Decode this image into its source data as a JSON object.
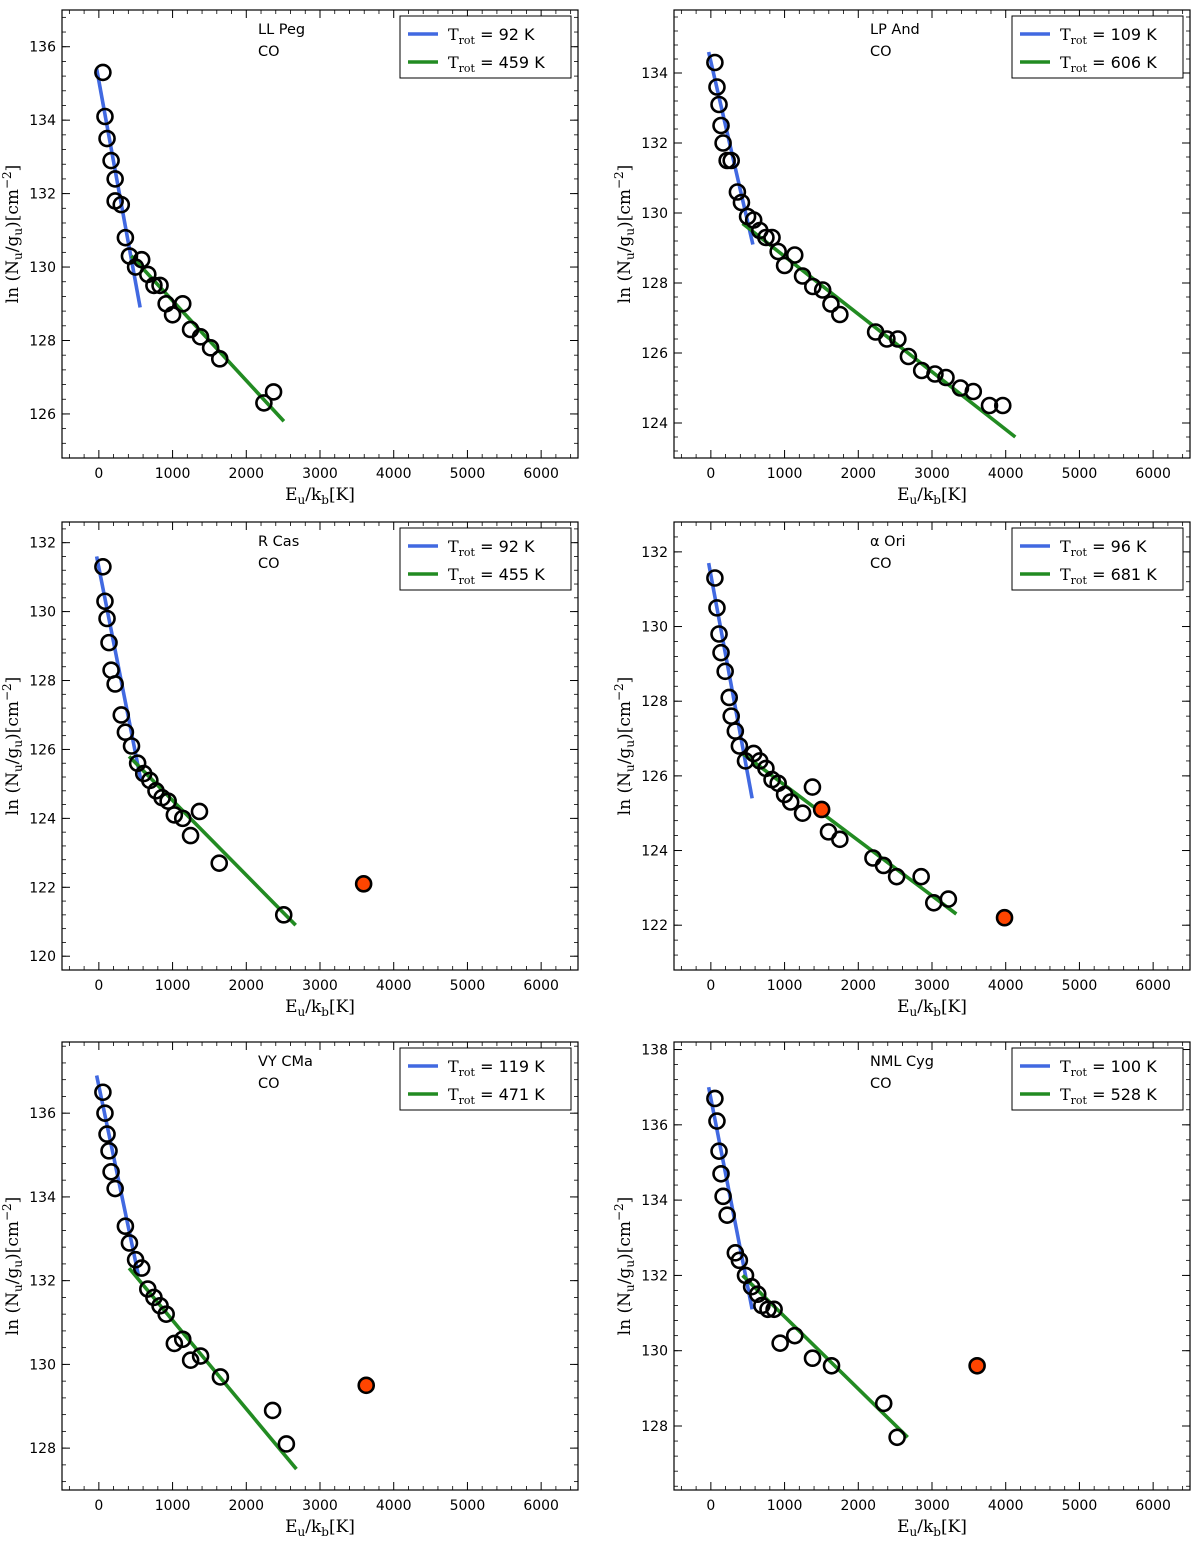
{
  "chart_data": [
    {
      "type": "scatter",
      "title": "LL Peg",
      "subtitle": "CO",
      "xlabel": "E_u/k_b[K]",
      "ylabel": "ln(N_u/g_u)[cm^-2]",
      "xlim": [
        -500,
        6500
      ],
      "ylim": [
        124.8,
        137.0
      ],
      "xticks": [
        0,
        1000,
        2000,
        3000,
        4000,
        5000,
        6000
      ],
      "yticks": [
        126,
        128,
        130,
        132,
        134,
        136
      ],
      "legend_position": "top-right",
      "points": [
        [
          55,
          135.3
        ],
        [
          83,
          134.1
        ],
        [
          111,
          133.5
        ],
        [
          166,
          132.9
        ],
        [
          221,
          132.4
        ],
        [
          221,
          131.8
        ],
        [
          304,
          131.7
        ],
        [
          360,
          130.8
        ],
        [
          415,
          130.3
        ],
        [
          498,
          130.0
        ],
        [
          581,
          130.2
        ],
        [
          664,
          129.8
        ],
        [
          747,
          129.5
        ],
        [
          830,
          129.5
        ],
        [
          913,
          129.0
        ],
        [
          1000,
          128.7
        ],
        [
          1138,
          129.0
        ],
        [
          1244,
          128.3
        ],
        [
          1379,
          128.1
        ],
        [
          1516,
          127.8
        ],
        [
          1640,
          127.5
        ],
        [
          2239,
          126.3
        ],
        [
          2370,
          126.6
        ]
      ],
      "excluded_points": [],
      "fits": [
        {
          "legend": "T_rot = 92 K",
          "label_main": "T",
          "label_sub": "rot",
          "label_rest": " =  92 K",
          "color": "#4169e1",
          "x": [
            -30,
            560
          ],
          "y": [
            135.4,
            128.9
          ]
        },
        {
          "legend": "T_rot = 459 K",
          "label_main": "T",
          "label_sub": "rot",
          "label_rest": " =  459 K",
          "color": "#228b22",
          "x": [
            440,
            2510
          ],
          "y": [
            130.3,
            125.8
          ]
        }
      ]
    },
    {
      "type": "scatter",
      "title": "LP And",
      "subtitle": "CO",
      "xlabel": "E_u/k_b[K]",
      "ylabel": "ln(N_u/g_u)[cm^-2]",
      "xlim": [
        -500,
        6500
      ],
      "ylim": [
        123.0,
        135.8
      ],
      "xticks": [
        0,
        1000,
        2000,
        3000,
        4000,
        5000,
        6000
      ],
      "yticks": [
        124,
        126,
        128,
        130,
        132,
        134
      ],
      "legend_position": "top-right",
      "points": [
        [
          55,
          134.3
        ],
        [
          83,
          133.6
        ],
        [
          111,
          133.1
        ],
        [
          138,
          132.5
        ],
        [
          166,
          132.0
        ],
        [
          221,
          131.5
        ],
        [
          276,
          131.5
        ],
        [
          360,
          130.6
        ],
        [
          415,
          130.3
        ],
        [
          498,
          129.9
        ],
        [
          581,
          129.8
        ],
        [
          664,
          129.5
        ],
        [
          747,
          129.3
        ],
        [
          830,
          129.3
        ],
        [
          913,
          128.9
        ],
        [
          1000,
          128.5
        ],
        [
          1138,
          128.8
        ],
        [
          1244,
          128.2
        ],
        [
          1383,
          127.9
        ],
        [
          1517,
          127.8
        ],
        [
          1629,
          127.4
        ],
        [
          1750,
          127.1
        ],
        [
          2235,
          126.6
        ],
        [
          2388,
          126.4
        ],
        [
          2537,
          126.4
        ],
        [
          2680,
          125.9
        ],
        [
          2860,
          125.5
        ],
        [
          3040,
          125.4
        ],
        [
          3190,
          125.3
        ],
        [
          3386,
          125.0
        ],
        [
          3560,
          124.9
        ],
        [
          3780,
          124.5
        ],
        [
          3960,
          124.5
        ]
      ],
      "excluded_points": [],
      "fits": [
        {
          "legend": "T_rot = 109 K",
          "label_main": "T",
          "label_sub": "rot",
          "label_rest": " =  109 K",
          "color": "#4169e1",
          "x": [
            -30,
            570
          ],
          "y": [
            134.6,
            129.1
          ]
        },
        {
          "legend": "T_rot = 606 K",
          "label_main": "T",
          "label_sub": "rot",
          "label_rest": " =  606 K",
          "color": "#228b22",
          "x": [
            430,
            4130
          ],
          "y": [
            129.7,
            123.6
          ]
        }
      ]
    },
    {
      "type": "scatter",
      "title": "R Cas",
      "subtitle": "CO",
      "xlabel": "E_u/k_b[K]",
      "ylabel": "ln(N_u/g_u)[cm^-2]",
      "xlim": [
        -500,
        6500
      ],
      "ylim": [
        119.6,
        132.6
      ],
      "xticks": [
        0,
        1000,
        2000,
        3000,
        4000,
        5000,
        6000
      ],
      "yticks": [
        120,
        122,
        124,
        126,
        128,
        130,
        132
      ],
      "legend_position": "top-right",
      "points": [
        [
          55,
          131.3
        ],
        [
          83,
          130.3
        ],
        [
          111,
          129.8
        ],
        [
          138,
          129.1
        ],
        [
          166,
          128.3
        ],
        [
          221,
          127.9
        ],
        [
          304,
          127.0
        ],
        [
          360,
          126.5
        ],
        [
          443,
          126.1
        ],
        [
          526,
          125.6
        ],
        [
          609,
          125.3
        ],
        [
          692,
          125.1
        ],
        [
          775,
          124.8
        ],
        [
          858,
          124.6
        ],
        [
          940,
          124.5
        ],
        [
          1024,
          124.1
        ],
        [
          1138,
          124.0
        ],
        [
          1244,
          123.5
        ],
        [
          1365,
          124.2
        ],
        [
          1633,
          122.7
        ],
        [
          2508,
          121.2
        ]
      ],
      "excluded_points": [
        [
          3592,
          122.1
        ]
      ],
      "fits": [
        {
          "legend": "T_rot = 92 K",
          "label_main": "T",
          "label_sub": "rot",
          "label_rest": " =  92 K",
          "color": "#4169e1",
          "x": [
            -30,
            570
          ],
          "y": [
            131.6,
            125.1
          ]
        },
        {
          "legend": "T_rot = 455 K",
          "label_main": "T",
          "label_sub": "rot",
          "label_rest": " =  455 K",
          "color": "#228b22",
          "x": [
            410,
            2670
          ],
          "y": [
            125.8,
            120.9
          ]
        }
      ]
    },
    {
      "type": "scatter",
      "title": "α Ori",
      "subtitle": "CO",
      "xlabel": "E_u/k_b[K]",
      "ylabel": "ln(N_u/g_u)[cm^-2]",
      "xlim": [
        -500,
        6500
      ],
      "ylim": [
        120.8,
        132.8
      ],
      "xticks": [
        0,
        1000,
        2000,
        3000,
        4000,
        5000,
        6000
      ],
      "yticks": [
        122,
        124,
        126,
        128,
        130,
        132
      ],
      "legend_position": "top-right",
      "points": [
        [
          55,
          131.3
        ],
        [
          83,
          130.5
        ],
        [
          111,
          129.8
        ],
        [
          138,
          129.3
        ],
        [
          194,
          128.8
        ],
        [
          249,
          128.1
        ],
        [
          276,
          127.6
        ],
        [
          332,
          127.2
        ],
        [
          387,
          126.8
        ],
        [
          470,
          126.4
        ],
        [
          581,
          126.6
        ],
        [
          664,
          126.4
        ],
        [
          747,
          126.2
        ],
        [
          830,
          125.9
        ],
        [
          913,
          125.8
        ],
        [
          1000,
          125.5
        ],
        [
          1083,
          125.3
        ],
        [
          1244,
          125.0
        ],
        [
          1378,
          125.7
        ],
        [
          1596,
          124.5
        ],
        [
          1750,
          124.3
        ],
        [
          2199,
          123.8
        ],
        [
          2343,
          123.6
        ],
        [
          2520,
          123.3
        ],
        [
          2853,
          123.3
        ],
        [
          3024,
          122.6
        ],
        [
          3222,
          122.7
        ]
      ],
      "excluded_points": [
        [
          1503,
          125.1
        ],
        [
          3984,
          122.2
        ]
      ],
      "fits": [
        {
          "legend": "T_rot = 96 K",
          "label_main": "T",
          "label_sub": "rot",
          "label_rest": " =  96 K",
          "color": "#4169e1",
          "x": [
            -30,
            560
          ],
          "y": [
            131.7,
            125.4
          ]
        },
        {
          "legend": "T_rot = 681 K",
          "label_main": "T",
          "label_sub": "rot",
          "label_rest": " =  681 K",
          "color": "#228b22",
          "x": [
            430,
            3330
          ],
          "y": [
            126.6,
            122.3
          ]
        }
      ]
    },
    {
      "type": "scatter",
      "title": "VY CMa",
      "subtitle": "CO",
      "xlabel": "E_u/k_b[K]",
      "ylabel": "ln(N_u/g_u)[cm^-2]",
      "xlim": [
        -500,
        6500
      ],
      "ylim": [
        127.0,
        137.7
      ],
      "xticks": [
        0,
        1000,
        2000,
        3000,
        4000,
        5000,
        6000
      ],
      "yticks": [
        128,
        130,
        132,
        134,
        136
      ],
      "legend_position": "top-right",
      "points": [
        [
          55,
          136.5
        ],
        [
          83,
          136.0
        ],
        [
          111,
          135.5
        ],
        [
          138,
          135.1
        ],
        [
          166,
          134.6
        ],
        [
          221,
          134.2
        ],
        [
          360,
          133.3
        ],
        [
          415,
          132.9
        ],
        [
          498,
          132.5
        ],
        [
          581,
          132.3
        ],
        [
          664,
          131.8
        ],
        [
          747,
          131.6
        ],
        [
          830,
          131.4
        ],
        [
          913,
          131.2
        ],
        [
          1024,
          130.5
        ],
        [
          1138,
          130.6
        ],
        [
          1245,
          130.1
        ],
        [
          1380,
          130.2
        ],
        [
          1649,
          129.7
        ],
        [
          2357,
          128.9
        ],
        [
          2544,
          128.1
        ]
      ],
      "excluded_points": [
        [
          3627,
          129.5
        ]
      ],
      "fits": [
        {
          "legend": "T_rot = 119 K",
          "label_main": "T",
          "label_sub": "rot",
          "label_rest": " =  119 K",
          "color": "#4169e1",
          "x": [
            -30,
            540
          ],
          "y": [
            136.9,
            132.1
          ]
        },
        {
          "legend": "T_rot = 471 K",
          "label_main": "T",
          "label_sub": "rot",
          "label_rest": " =  471 K",
          "color": "#228b22",
          "x": [
            410,
            2680
          ],
          "y": [
            132.3,
            127.5
          ]
        }
      ]
    },
    {
      "type": "scatter",
      "title": "NML Cyg",
      "subtitle": "CO",
      "xlabel": "E_u/k_b[K]",
      "ylabel": "ln(N_u/g_u)[cm^-2]",
      "xlim": [
        -500,
        6500
      ],
      "ylim": [
        126.3,
        138.2
      ],
      "xticks": [
        0,
        1000,
        2000,
        3000,
        4000,
        5000,
        6000
      ],
      "yticks": [
        128,
        130,
        132,
        134,
        136,
        138
      ],
      "legend_position": "top-right",
      "points": [
        [
          55,
          136.7
        ],
        [
          83,
          136.1
        ],
        [
          111,
          135.3
        ],
        [
          138,
          134.7
        ],
        [
          166,
          134.1
        ],
        [
          221,
          133.6
        ],
        [
          332,
          132.6
        ],
        [
          387,
          132.4
        ],
        [
          470,
          132.0
        ],
        [
          553,
          131.7
        ],
        [
          636,
          131.5
        ],
        [
          692,
          131.2
        ],
        [
          775,
          131.1
        ],
        [
          858,
          131.1
        ],
        [
          940,
          130.2
        ],
        [
          1138,
          130.4
        ],
        [
          1379,
          129.8
        ],
        [
          1637,
          129.6
        ],
        [
          2345,
          128.6
        ],
        [
          2527,
          127.7
        ]
      ],
      "excluded_points": [
        [
          3612,
          129.6
        ]
      ],
      "fits": [
        {
          "legend": "T_rot = 100 K",
          "label_main": "T",
          "label_sub": "rot",
          "label_rest": " =  100 K",
          "color": "#4169e1",
          "x": [
            -30,
            560
          ],
          "y": [
            137.0,
            131.1
          ]
        },
        {
          "legend": "T_rot = 528 K",
          "label_main": "T",
          "label_sub": "rot",
          "label_rest": " =  528 K",
          "color": "#228b22",
          "x": [
            430,
            2670
          ],
          "y": [
            132.0,
            127.7
          ]
        }
      ]
    }
  ]
}
